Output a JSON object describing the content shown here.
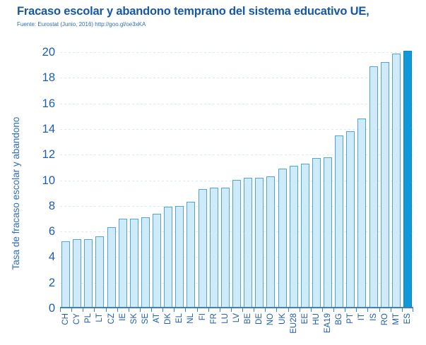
{
  "header": {
    "title": "Fracaso escolar y abandono temprano del sistema educativo UE,",
    "source": "Fuente: Eurostat (Junio, 2016) http://goo.gl/oe3xKA"
  },
  "chart_data": {
    "type": "bar",
    "title": "Fracaso escolar y abandono temprano del sistema educativo UE,",
    "source": "Fuente: Eurostat (Junio, 2016) http://goo.gl/oe3xKA",
    "xlabel": "",
    "ylabel": "Tasa de fracaso escolar y abandono",
    "categories": [
      "CH",
      "CY",
      "PL",
      "LT",
      "CZ",
      "IE",
      "SK",
      "SE",
      "AT",
      "DK",
      "EL",
      "NL",
      "FI",
      "FR",
      "LU",
      "LV",
      "BE",
      "DE",
      "NO",
      "UK",
      "EU28",
      "EE",
      "HU",
      "EA19",
      "BG",
      "PT",
      "IT",
      "IS",
      "RO",
      "MT",
      "ES"
    ],
    "values": [
      5.1,
      5.3,
      5.3,
      5.5,
      6.2,
      6.9,
      6.9,
      7.0,
      7.3,
      7.8,
      7.9,
      8.2,
      9.2,
      9.3,
      9.3,
      9.9,
      10.1,
      10.1,
      10.2,
      10.8,
      11.0,
      11.2,
      11.6,
      11.7,
      13.4,
      13.7,
      14.7,
      18.8,
      19.1,
      19.8,
      20.0
    ],
    "ylim": [
      0,
      20
    ],
    "yticks": [
      0,
      2,
      4,
      6,
      8,
      10,
      12,
      14,
      16,
      18,
      20
    ],
    "grid": true,
    "legend": false,
    "highlight_category": "ES",
    "colors": {
      "bar_fill": "#cfeaf8",
      "bar_border": "#4fa6d4",
      "highlight_fill": "#0f99d8",
      "highlight_border": "#0c86c0",
      "gridline": "#d4ecf8",
      "axis": "#3e7fc1",
      "title": "#1757a6",
      "tick_labels": "#1d5dad",
      "source_text": "#2e6db8"
    }
  }
}
